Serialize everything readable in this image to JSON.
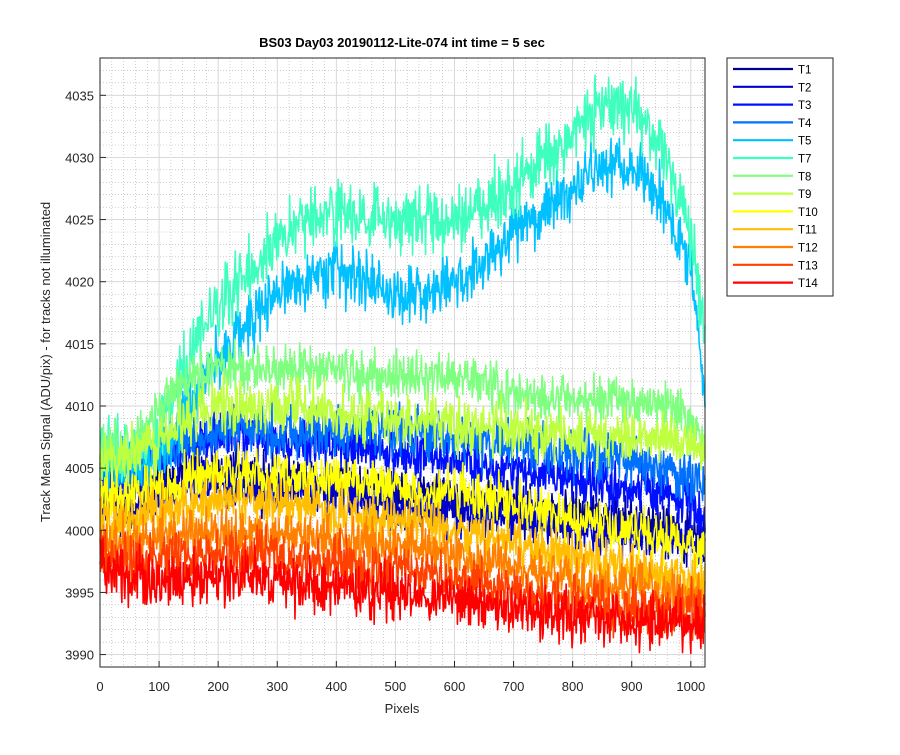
{
  "chart_data": {
    "type": "line",
    "title": "BS03 Day03 20190112-Lite-074 int time = 5 sec",
    "xlabel": "Pixels",
    "ylabel": "Track Mean Signal (ADU/pix) - for tracks not illuminated",
    "xlim": [
      0,
      1024
    ],
    "ylim": [
      3989,
      4038
    ],
    "x_ticks": [
      0,
      100,
      200,
      300,
      400,
      500,
      600,
      700,
      800,
      900,
      1000
    ],
    "y_ticks": [
      3990,
      3995,
      4000,
      4005,
      4010,
      4015,
      4020,
      4025,
      4030,
      4035
    ],
    "grid": "major and minor, dotted",
    "legend_position": "outside-right",
    "noise_note_plus_minus_adu": [
      1.2,
      1.2,
      1.2,
      1.3,
      1.5,
      1.6,
      1.2,
      1.3,
      1.2,
      1.2,
      1.2,
      1.3,
      1.3
    ],
    "x": [
      0,
      50,
      100,
      150,
      200,
      250,
      300,
      350,
      400,
      450,
      500,
      550,
      600,
      650,
      700,
      750,
      800,
      850,
      900,
      950,
      1000,
      1024
    ],
    "series": [
      {
        "name": "T1",
        "color": "#00008f",
        "values": [
          4003,
          4003,
          4004,
          4004.5,
          4005,
          4004.5,
          4004,
          4004,
          4004,
          4003.5,
          4003,
          4003,
          4002.5,
          4002.5,
          4002,
          4001.5,
          4001.5,
          4001,
          4000.5,
          4000,
          3999.5,
          3999
        ]
      },
      {
        "name": "T2",
        "color": "#0000cf",
        "values": [
          4002,
          4002,
          4003,
          4003.5,
          4004,
          4003.5,
          4003,
          4003,
          4003,
          4002.5,
          4002,
          4002,
          4001.5,
          4001.5,
          4001,
          4001,
          4000.5,
          4000,
          4000,
          3999.5,
          3999,
          3998.5
        ]
      },
      {
        "name": "T3",
        "color": "#0010ff",
        "values": [
          4004,
          4004.5,
          4006,
          4007,
          4007.5,
          4007.5,
          4007,
          4007,
          4007,
          4006.5,
          4006,
          4006,
          4005.5,
          4005,
          4005,
          4004.5,
          4004,
          4003.5,
          4003.5,
          4003,
          4002,
          4001
        ]
      },
      {
        "name": "T4",
        "color": "#0070ff",
        "values": [
          4004.5,
          4005,
          4006.5,
          4007.5,
          4008,
          4008,
          4008,
          4008,
          4008,
          4008,
          4008,
          4007.5,
          4007.5,
          4007,
          4007,
          4006.5,
          4006,
          4006,
          4005.5,
          4005,
          4004,
          4003
        ]
      },
      {
        "name": "T5",
        "color": "#00c0ff",
        "values": [
          4006,
          4005,
          4006,
          4010,
          4014,
          4016.5,
          4019,
          4020.5,
          4021,
          4020,
          4019,
          4019,
          4020,
          4021.5,
          4024,
          4026,
          4027.5,
          4029,
          4029,
          4027,
          4021,
          4011
        ]
      },
      {
        "name": "T7",
        "color": "#3fffbf",
        "values": [
          4006.5,
          4006,
          4008,
          4014,
          4018,
          4021,
          4023.5,
          4025,
          4025.5,
          4025,
          4024.5,
          4025,
          4025,
          4026,
          4027.5,
          4030,
          4032,
          4034,
          4034,
          4031,
          4024,
          4015
        ]
      },
      {
        "name": "T8",
        "color": "#7fff7f",
        "values": [
          4006,
          4007,
          4010,
          4012,
          4013,
          4013,
          4013,
          4013,
          4013,
          4012.5,
          4012.5,
          4012.5,
          4012.5,
          4012,
          4011,
          4010.5,
          4010.5,
          4010.5,
          4010.5,
          4010,
          4008.5,
          4007.5
        ]
      },
      {
        "name": "T9",
        "color": "#bfff3f",
        "values": [
          4005,
          4006,
          4007.5,
          4009,
          4010,
          4010,
          4010,
          4010,
          4009.5,
          4009,
          4009,
          4009,
          4008.5,
          4008.5,
          4008,
          4008,
          4007.5,
          4007.5,
          4007.5,
          4007.5,
          4007,
          4006.5
        ]
      },
      {
        "name": "T10",
        "color": "#ffff00",
        "values": [
          4002.5,
          4003,
          4003.5,
          4004,
          4004.5,
          4004.5,
          4004.5,
          4004,
          4004,
          4003.5,
          4003.5,
          4003,
          4003,
          4002.5,
          4002,
          4001.5,
          4001,
          4000.5,
          4000,
          3999.5,
          3999,
          3998.5
        ]
      },
      {
        "name": "T11",
        "color": "#ffbf00",
        "values": [
          4000.5,
          4001,
          4001.5,
          4002,
          4002.5,
          4002.5,
          4002,
          4002,
          4001.5,
          4001,
          4001,
          4000.5,
          4000,
          3999.5,
          3999,
          3998.5,
          3998,
          3997.5,
          3997,
          3996.5,
          3996,
          3996
        ]
      },
      {
        "name": "T12",
        "color": "#ff8000",
        "values": [
          3999,
          3999,
          3999.5,
          4000,
          4000,
          4000,
          4000,
          3999.5,
          3999.5,
          3999,
          3999,
          3998.5,
          3998,
          3997.5,
          3997,
          3996.5,
          3996,
          3995.5,
          3995.5,
          3995,
          3994.5,
          3994.5
        ]
      },
      {
        "name": "T13",
        "color": "#ff4000",
        "values": [
          3998,
          3997.5,
          3997.5,
          3998,
          3998,
          3998,
          3998,
          3997.5,
          3997.5,
          3997,
          3997,
          3996.5,
          3996,
          3995.5,
          3995,
          3994.5,
          3994,
          3994,
          3993.5,
          3993.5,
          3993.5,
          3993.5
        ]
      },
      {
        "name": "T14",
        "color": "#ff0000",
        "values": [
          3997.5,
          3996,
          3996,
          3996,
          3996,
          3996,
          3996,
          3995.5,
          3995.5,
          3995,
          3995,
          3994.5,
          3994.5,
          3994,
          3993.5,
          3993.5,
          3993,
          3993,
          3992.5,
          3992.5,
          3992.5,
          3992.5
        ]
      }
    ]
  }
}
